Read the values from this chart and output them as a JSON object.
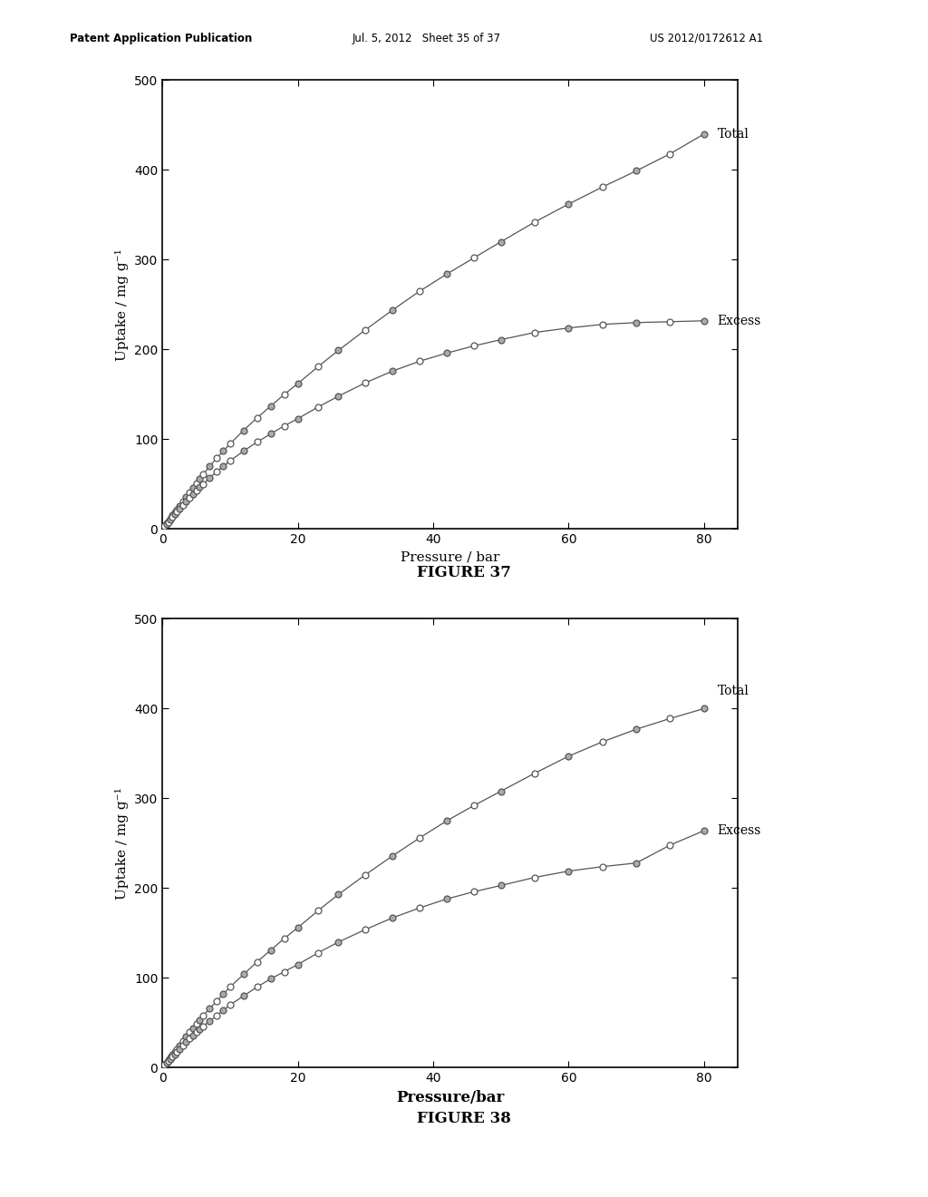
{
  "header_left": "Patent Application Publication",
  "header_mid": "Jul. 5, 2012   Sheet 35 of 37",
  "header_right": "US 2012/0172612 A1",
  "fig1_caption": "FIGURE 37",
  "fig2_caption": "FIGURE 38",
  "fig1_xlabel": "Pressure / bar",
  "fig2_xlabel": "Pressure/bar",
  "ylabel": "Uptake / mg g⁻¹",
  "xlim": [
    0,
    85
  ],
  "ylim": [
    0,
    500
  ],
  "xticks": [
    0,
    20,
    40,
    60,
    80
  ],
  "yticks": [
    0,
    100,
    200,
    300,
    400,
    500
  ],
  "fig1_total_x": [
    0.3,
    0.6,
    0.9,
    1.2,
    1.5,
    1.8,
    2.1,
    2.5,
    3,
    3.5,
    4,
    4.5,
    5,
    5.5,
    6,
    7,
    8,
    9,
    10,
    12,
    14,
    16,
    18,
    20,
    23,
    26,
    30,
    34,
    38,
    42,
    46,
    50,
    55,
    60,
    65,
    70,
    75,
    80
  ],
  "fig1_total_y": [
    3,
    6,
    9,
    12,
    16,
    19,
    22,
    26,
    31,
    36,
    41,
    46,
    51,
    56,
    61,
    70,
    79,
    87,
    95,
    110,
    124,
    137,
    150,
    162,
    181,
    199,
    222,
    244,
    265,
    284,
    302,
    320,
    342,
    362,
    381,
    399,
    418,
    440
  ],
  "fig1_excess_x": [
    0.3,
    0.6,
    0.9,
    1.2,
    1.5,
    1.8,
    2.1,
    2.5,
    3,
    3.5,
    4,
    4.5,
    5,
    5.5,
    6,
    7,
    8,
    9,
    10,
    12,
    14,
    16,
    18,
    20,
    23,
    26,
    30,
    34,
    38,
    42,
    46,
    50,
    55,
    60,
    65,
    70,
    75,
    80
  ],
  "fig1_excess_y": [
    3,
    5,
    8,
    11,
    14,
    17,
    20,
    23,
    27,
    31,
    35,
    39,
    43,
    47,
    50,
    57,
    64,
    70,
    76,
    87,
    97,
    106,
    115,
    123,
    136,
    148,
    163,
    176,
    187,
    196,
    204,
    211,
    219,
    224,
    228,
    230,
    231,
    232
  ],
  "fig2_total_x": [
    0.3,
    0.6,
    0.9,
    1.2,
    1.5,
    1.8,
    2.1,
    2.5,
    3,
    3.5,
    4,
    4.5,
    5,
    5.5,
    6,
    7,
    8,
    9,
    10,
    12,
    14,
    16,
    18,
    20,
    23,
    26,
    30,
    34,
    38,
    42,
    46,
    50,
    55,
    60,
    65,
    70,
    75,
    80
  ],
  "fig2_total_y": [
    3,
    6,
    9,
    12,
    15,
    18,
    21,
    25,
    30,
    35,
    40,
    44,
    49,
    53,
    58,
    66,
    74,
    82,
    90,
    104,
    118,
    131,
    144,
    156,
    175,
    193,
    215,
    236,
    256,
    275,
    292,
    308,
    328,
    347,
    363,
    377,
    389,
    400
  ],
  "fig2_excess_x": [
    0.3,
    0.6,
    0.9,
    1.2,
    1.5,
    1.8,
    2.1,
    2.5,
    3,
    3.5,
    4,
    4.5,
    5,
    5.5,
    6,
    7,
    8,
    9,
    10,
    12,
    14,
    16,
    18,
    20,
    23,
    26,
    30,
    34,
    38,
    42,
    46,
    50,
    55,
    60,
    65,
    70,
    75,
    80
  ],
  "fig2_excess_y": [
    3,
    5,
    8,
    10,
    13,
    15,
    18,
    21,
    25,
    29,
    33,
    36,
    40,
    43,
    46,
    52,
    58,
    64,
    70,
    80,
    90,
    99,
    107,
    115,
    128,
    140,
    154,
    167,
    178,
    188,
    196,
    203,
    212,
    219,
    224,
    228,
    248,
    264
  ],
  "line_color": "#555555",
  "marker_size": 5,
  "background_color": "#ffffff"
}
